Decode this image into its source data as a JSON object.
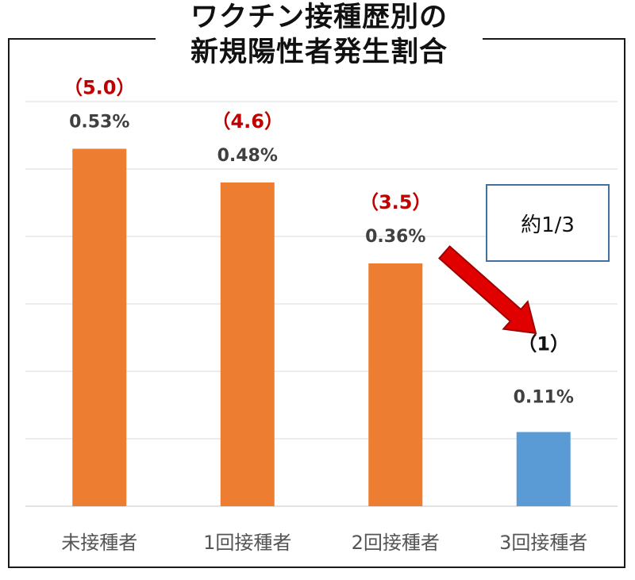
{
  "title": {
    "line1": "ワクチン接種歴別の",
    "line2": "新規陽性者発生割合"
  },
  "note": "約1/3",
  "colors": {
    "bar_default": "#ed7d31",
    "bar_highlight": "#5b9bd5",
    "ratio_label": "#c00000",
    "ratio_label_highlight": "#111111",
    "value_label": "#404040",
    "grid": "#d9d9d9",
    "arrow": "#e00000"
  },
  "chart_data": {
    "type": "bar",
    "categories": [
      "未接種者",
      "1回接種者",
      "2回接種者",
      "3回接種者"
    ],
    "values": [
      0.53,
      0.48,
      0.36,
      0.11
    ],
    "value_labels": [
      "0.53%",
      "0.48%",
      "0.36%",
      "0.11%"
    ],
    "ratio_labels": [
      "（5.0）",
      "（4.6）",
      "（3.5）",
      "（1）"
    ],
    "highlight_index": 3,
    "ylim": [
      0,
      0.6
    ],
    "grid": true,
    "annotation": "約1/3"
  }
}
